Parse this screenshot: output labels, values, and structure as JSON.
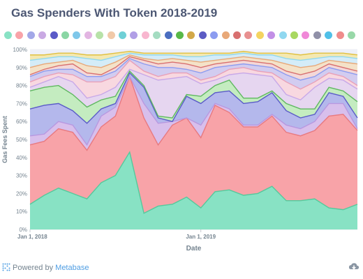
{
  "title": "Gas Spenders With Token 2018-2019",
  "footer": {
    "prefix": "Powered by",
    "brand": "Metabase",
    "logo_icon": "metabase-logo-icon",
    "download_icon": "download-icon"
  },
  "legend": {
    "colors": [
      "#88e2c4",
      "#f8a3a8",
      "#a3a8e8",
      "#c9a9e3",
      "#5a5ac8",
      "#8ad6a4",
      "#7fc7ea",
      "#e2b5e2",
      "#b7e2a8",
      "#f1c9a8",
      "#6fd0d6",
      "#b19fe6",
      "#f8b6cf",
      "#a4dcc1",
      "#4a6ec0",
      "#58b848",
      "#d2a848",
      "#5c5cc4",
      "#8c9cf0",
      "#e8a878",
      "#d87070",
      "#e89090",
      "#f4d460",
      "#c28fe6",
      "#90d8f0",
      "#a8d860",
      "#f088d8",
      "#9090a8",
      "#50c0e8",
      "#ef8c8c",
      "#98d8a8"
    ]
  },
  "chart_data": {
    "type": "area",
    "stacked": "percent",
    "title": "Gas Spenders With Token 2018-2019",
    "xlabel": "Date",
    "ylabel": "Gas Fees Spent",
    "x_ticks": [
      "Jan 1, 2018",
      "Jan 1, 2019"
    ],
    "y_ticks": [
      "0%",
      "10%",
      "20%",
      "30%",
      "40%",
      "50%",
      "60%",
      "70%",
      "80%",
      "90%",
      "100%"
    ],
    "ylim": [
      0,
      100
    ],
    "grid": true,
    "legend_position": "top",
    "x": [
      "2018-01",
      "2018-02",
      "2018-03",
      "2018-04",
      "2018-05",
      "2018-06",
      "2018-07",
      "2018-08",
      "2018-09",
      "2018-10",
      "2018-11",
      "2018-12",
      "2019-01",
      "2019-02",
      "2019-03",
      "2019-04",
      "2019-05",
      "2019-06",
      "2019-07",
      "2019-08",
      "2019-09",
      "2019-10",
      "2019-11",
      "2019-12"
    ],
    "cumulative": [
      {
        "color": "#88e2c4",
        "line": "#55c99c",
        "values": [
          14,
          19,
          23,
          20,
          17,
          26,
          30,
          43,
          9,
          13,
          14,
          18,
          12,
          21,
          22,
          19,
          20,
          24,
          16,
          16,
          17,
          12,
          11,
          14
        ]
      },
      {
        "color": "#f8a3a8",
        "line": "#e87a80",
        "values": [
          47,
          49,
          56,
          54,
          44,
          57,
          63,
          85,
          62,
          47,
          58,
          62,
          51,
          69,
          65,
          57,
          57,
          63,
          54,
          52,
          55,
          63,
          64,
          55
        ]
      },
      {
        "color": "#d8bfec",
        "line": "#b898e0",
        "values": [
          52,
          53,
          60,
          58,
          47,
          63,
          68,
          85,
          70,
          59,
          60,
          62,
          58,
          70,
          67,
          58,
          58,
          64,
          58,
          56,
          60,
          70,
          70,
          56
        ]
      },
      {
        "color": "#b4b8ec",
        "line": "#5a5ac8",
        "values": [
          67,
          69,
          70,
          66,
          59,
          67,
          70,
          87,
          79,
          62,
          60,
          74,
          70,
          76,
          77,
          70,
          71,
          76,
          66,
          62,
          64,
          76,
          74,
          62
        ]
      },
      {
        "color": "#c4ecc0",
        "line": "#5fb860",
        "values": [
          77,
          79,
          80,
          75,
          68,
          72,
          74,
          88,
          80,
          63,
          62,
          75,
          74,
          80,
          83,
          73,
          73,
          77,
          70,
          67,
          67,
          79,
          77,
          71
        ]
      },
      {
        "color": "#e6d6f0",
        "line": "#c8a8e8",
        "values": [
          79,
          82,
          85,
          82,
          73,
          75,
          79,
          89,
          86,
          83,
          84,
          85,
          81,
          83,
          86,
          87,
          86,
          85,
          75,
          72,
          79,
          84,
          83,
          78
        ]
      },
      {
        "color": "#f8d8e0",
        "line": "#e8a0b8",
        "values": [
          82,
          85,
          87,
          86,
          82,
          82,
          85,
          94,
          88,
          85,
          87,
          87,
          83,
          85,
          89,
          90,
          88,
          87,
          82,
          78,
          82,
          87,
          85,
          80
        ]
      },
      {
        "color": "#d2ccf0",
        "line": "#8c9cf0",
        "values": [
          85,
          88,
          89,
          89,
          85,
          85,
          88,
          95,
          92,
          90,
          90,
          89,
          87,
          90,
          91,
          92,
          91,
          90,
          86,
          83,
          85,
          90,
          88,
          86
        ]
      },
      {
        "color": "#f4d8d8",
        "line": "#d87070",
        "values": [
          86,
          89,
          91,
          92,
          87,
          86,
          90,
          96,
          94,
          92,
          93,
          92,
          90,
          92,
          93,
          94,
          93,
          92,
          88,
          86,
          88,
          92,
          90,
          88
        ]
      },
      {
        "color": "#f4e2c8",
        "line": "#e8a878",
        "values": [
          90,
          92,
          93,
          94,
          91,
          90,
          93,
          97,
          95,
          94,
          95,
          94,
          93,
          94,
          95,
          96,
          95,
          94,
          92,
          90,
          91,
          94,
          93,
          92
        ]
      },
      {
        "color": "#d4ecf8",
        "line": "#90d8f0",
        "values": [
          94,
          95,
          96,
          96,
          95,
          94,
          96,
          98,
          97,
          97,
          97,
          96,
          96,
          97,
          97,
          98,
          97,
          97,
          95,
          94,
          95,
          96,
          96,
          95
        ]
      },
      {
        "color": "#f4e8b0",
        "line": "#e0c040",
        "values": [
          97,
          97,
          98,
          98,
          97,
          97,
          98,
          99,
          98,
          98,
          98,
          98,
          98,
          98,
          98,
          99,
          98,
          98,
          98,
          97,
          98,
          98,
          98,
          97
        ]
      },
      {
        "color": "#eef0f8",
        "line": "#c0c8e0",
        "values": [
          100,
          100,
          100,
          100,
          100,
          100,
          100,
          100,
          100,
          100,
          100,
          100,
          100,
          100,
          100,
          100,
          100,
          100,
          100,
          100,
          100,
          100,
          100,
          100
        ]
      }
    ]
  }
}
